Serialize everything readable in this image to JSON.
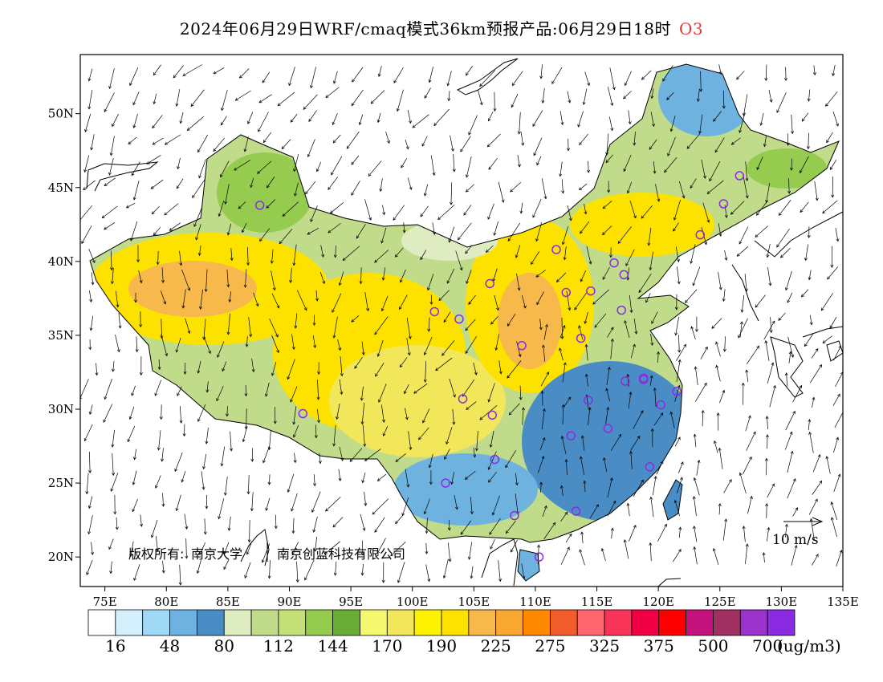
{
  "title": {
    "text": "2024年06月29日WRF/cmaq模式36km预报产品:06月29日18时",
    "pollutant": "O3"
  },
  "axes": {
    "lon_ticks": [
      "75E",
      "80E",
      "85E",
      "90E",
      "95E",
      "100E",
      "105E",
      "110E",
      "115E",
      "120E",
      "125E",
      "130E",
      "135E"
    ],
    "lat_ticks": [
      "50N",
      "45N",
      "40N",
      "35N",
      "30N",
      "25N",
      "20N"
    ],
    "lon_range": [
      73,
      135
    ],
    "lat_range": [
      18,
      54
    ]
  },
  "copyright": {
    "label": "版权所有:",
    "org1": "南京大学",
    "org2": "南京创蓝科技有限公司"
  },
  "vector_legend": {
    "label": "10 m/s"
  },
  "colorbar": {
    "colors": [
      "#ffffff",
      "#d3f0fc",
      "#9fd9f5",
      "#6eb2e0",
      "#4a8dc4",
      "#dfecc2",
      "#c0db8a",
      "#c3df78",
      "#95cc50",
      "#6aac38",
      "#f3f86e",
      "#f2e65a",
      "#fdf300",
      "#fde200",
      "#f7b84c",
      "#f9a932",
      "#ff8a00",
      "#f05c2c",
      "#fe6670",
      "#f83558",
      "#f10046",
      "#ff0000",
      "#c4127c",
      "#a03062",
      "#9a33cc",
      "#8a2be2"
    ],
    "labels": [
      "16",
      "48",
      "80",
      "112",
      "144",
      "170",
      "190",
      "225",
      "275",
      "325",
      "375",
      "500",
      "700"
    ],
    "unit": "(ug/m3)"
  },
  "sites": [
    [
      87.6,
      43.8
    ],
    [
      91.1,
      29.7
    ],
    [
      101.8,
      36.6
    ],
    [
      103.8,
      36.1
    ],
    [
      106.3,
      38.5
    ],
    [
      104.1,
      30.7
    ],
    [
      106.5,
      29.6
    ],
    [
      106.7,
      26.6
    ],
    [
      102.7,
      25.0
    ],
    [
      108.3,
      22.8
    ],
    [
      110.3,
      20.0
    ],
    [
      113.3,
      23.1
    ],
    [
      112.9,
      28.2
    ],
    [
      114.3,
      30.6
    ],
    [
      115.9,
      28.7
    ],
    [
      117.3,
      31.9
    ],
    [
      118.8,
      32.1
    ],
    [
      120.2,
      30.3
    ],
    [
      121.5,
      31.2
    ],
    [
      119.3,
      26.1
    ],
    [
      113.7,
      34.8
    ],
    [
      108.9,
      34.3
    ],
    [
      112.5,
      37.9
    ],
    [
      114.5,
      38.0
    ],
    [
      117.0,
      36.7
    ],
    [
      117.2,
      39.1
    ],
    [
      116.4,
      39.9
    ],
    [
      111.7,
      40.8
    ],
    [
      123.4,
      41.8
    ],
    [
      125.3,
      43.9
    ],
    [
      126.6,
      45.8
    ],
    [
      118.8,
      32.0
    ]
  ]
}
